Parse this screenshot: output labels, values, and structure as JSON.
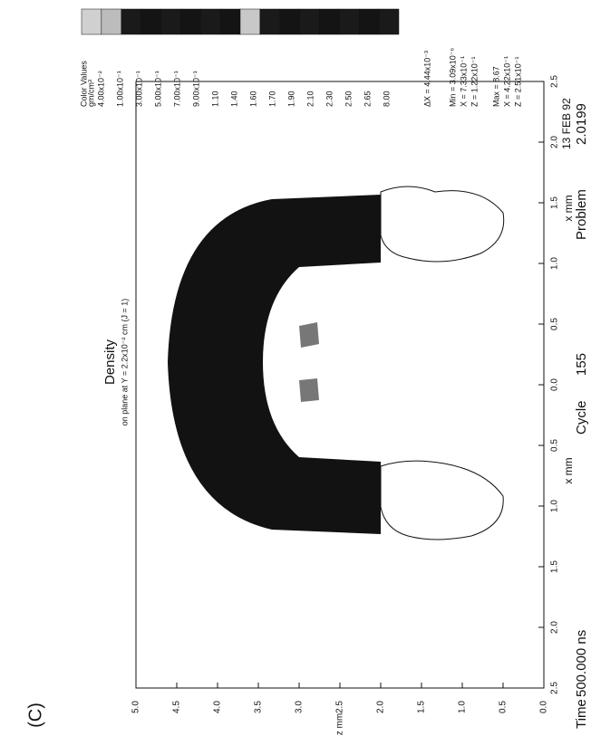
{
  "chart_data": {
    "type": "contour",
    "title": "Density",
    "subtitle": "on plane at Y = 2.2x10⁻² cm (J = 1)",
    "xlabel": "x mm",
    "ylabel": "z mm",
    "panel_label": "(C)",
    "xlim": [
      -2.5,
      2.5
    ],
    "xticks": [
      {
        "value": -2.5,
        "label": "2.5"
      },
      {
        "value": -2.0,
        "label": "2.0"
      },
      {
        "value": -1.5,
        "label": "1.5"
      },
      {
        "value": -1.0,
        "label": "1.0"
      },
      {
        "value": -0.5,
        "label": "0.5"
      },
      {
        "value": 0,
        "label": "0.0"
      },
      0.5,
      {
        "value": 1,
        "label": "1.0"
      },
      1.5,
      {
        "value": 2,
        "label": "2.0"
      },
      2.5
    ],
    "ylim": [
      0,
      5
    ],
    "yticks": [
      {
        "value": 0,
        "label": "0.0"
      },
      0.5,
      {
        "value": 1,
        "label": "1.0"
      },
      1.5,
      {
        "value": 2,
        "label": "2.0"
      },
      2.5,
      {
        "value": 3,
        "label": "3.0"
      },
      3.5,
      {
        "value": 4,
        "label": "4.0"
      },
      4.5,
      {
        "value": 5,
        "label": "5.0"
      }
    ],
    "legend": {
      "title": "Color Values",
      "units": "gm/cm³",
      "levels": [
        {
          "value": 0.04,
          "label": "4.00x10⁻²"
        },
        {
          "value": 0.1,
          "label": "1.00x10⁻¹"
        },
        {
          "value": 0.3,
          "label": "3.00x10⁻¹"
        },
        {
          "value": 0.5,
          "label": "5.00x10⁻¹"
        },
        {
          "value": 0.7,
          "label": "7.00x10⁻¹"
        },
        {
          "value": 0.9,
          "label": "9.00x10⁻¹"
        },
        1.1,
        1.4,
        1.6,
        1.7,
        1.9,
        2.1,
        2.3,
        2.5,
        2.65,
        8
      ],
      "level_labels": [
        "4.00x10⁻²",
        "1.00x10⁻¹",
        "3.00x10⁻¹",
        "5.00x10⁻¹",
        "7.00x10⁻¹",
        "9.00x10⁻¹",
        "1.10",
        "1.40",
        "1.60",
        "1.70",
        "1.90",
        "2.10",
        "2.30",
        "2.50",
        "2.65",
        "8.00"
      ],
      "colors": [
        "#d0d0d0",
        "#bcbcbc",
        "#1a1a1a",
        "#141414",
        "#1a1a1a",
        "#141414",
        "#1a1a1a",
        "#141414",
        "#c8c8c8",
        "#1a1a1a",
        "#141414",
        "#1a1a1a",
        "#141414",
        "#1a1a1a",
        "#141414",
        "#1a1a1a"
      ]
    },
    "stats": [
      "ΔX = 4.44x10⁻³",
      "Min = 3.09x10⁻⁶",
      "X = 7.33x10⁻¹",
      "Z = 1.22x10⁻¹",
      "Max = 8.67",
      "X = 4.22x10⁻¹",
      "Z = 2.51x10⁻¹"
    ],
    "footer": {
      "time_label": "Time",
      "time": "500.000 ns",
      "cycle_label": "Cycle",
      "cycle": "155",
      "problem_label": "Problem",
      "problem": "2.0199",
      "date": "13 FEB 92"
    }
  }
}
